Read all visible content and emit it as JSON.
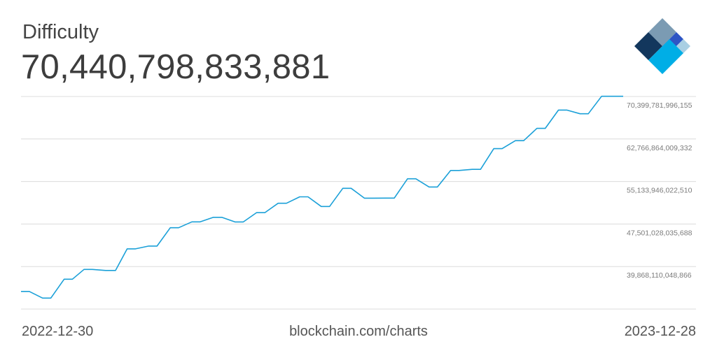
{
  "header": {
    "title": "Difficulty",
    "value": "70,440,798,833,881"
  },
  "footer": {
    "start_date": "2022-12-30",
    "source": "blockchain.com/charts",
    "end_date": "2023-12-28"
  },
  "logo": {
    "icon": "blockchain-logo-icon",
    "colors": [
      "#7b9bb3",
      "#13375d",
      "#2e55c4",
      "#a9cfe3",
      "#00aee6"
    ]
  },
  "chart_data": {
    "type": "line",
    "title": "",
    "xlabel": "",
    "ylabel": "",
    "xlim": [
      "2022-12-30",
      "2023-12-28"
    ],
    "ylim": [
      32235191876044,
      70399781996155
    ],
    "ytick_labels": [
      "70,399,781,996,155",
      "62,766,864,009,332",
      "55,133,946,022,510",
      "47,501,028,035,688",
      "39,868,110,048,866"
    ],
    "grid": true,
    "line_color": "#1ba0d8",
    "series": [
      {
        "x": [
          "2022-12-30",
          "2023-01-04",
          "2023-01-12",
          "2023-01-17",
          "2023-01-25",
          "2023-01-30",
          "2023-02-06",
          "2023-02-11",
          "2023-02-19",
          "2023-02-25",
          "2023-03-04",
          "2023-03-09",
          "2023-03-17",
          "2023-03-22",
          "2023-03-30",
          "2023-04-04",
          "2023-04-12",
          "2023-04-17",
          "2023-04-25",
          "2023-04-30",
          "2023-05-08",
          "2023-05-13",
          "2023-05-21",
          "2023-05-26",
          "2023-06-03",
          "2023-06-08",
          "2023-06-16",
          "2023-06-21",
          "2023-06-29",
          "2023-07-04",
          "2023-07-12",
          "2023-07-17",
          "2023-07-25",
          "2023-07-30",
          "2023-08-07",
          "2023-08-12",
          "2023-08-20",
          "2023-08-25",
          "2023-09-02",
          "2023-09-07",
          "2023-09-15",
          "2023-09-20",
          "2023-09-28",
          "2023-10-03",
          "2023-10-11",
          "2023-10-16",
          "2023-10-24",
          "2023-10-29",
          "2023-11-06",
          "2023-11-11",
          "2023-11-19",
          "2023-11-24",
          "2023-12-02",
          "2023-12-07",
          "2023-12-15",
          "2023-12-20",
          "2023-12-28"
        ],
        "y": [
          35400000000000,
          35400000000000,
          34200000000000,
          34200000000000,
          37590000000000,
          37590000000000,
          39350000000000,
          39350000000000,
          39160000000000,
          39160000000000,
          43050000000000,
          43050000000000,
          43550000000000,
          43550000000000,
          46840000000000,
          46840000000000,
          47890000000000,
          47890000000000,
          48710000000000,
          48710000000000,
          47880000000000,
          47880000000000,
          49550000000000,
          49550000000000,
          51230000000000,
          51230000000000,
          52390000000000,
          52390000000000,
          50650000000000,
          50650000000000,
          53910000000000,
          53910000000000,
          52140000000000,
          52140000000000,
          52160000000000,
          52160000000000,
          55620000000000,
          55620000000000,
          54150000000000,
          54150000000000,
          57120000000000,
          57120000000000,
          57320000000000,
          57320000000000,
          61030000000000,
          61030000000000,
          62460000000000,
          62460000000000,
          64680000000000,
          64680000000000,
          67960000000000,
          67960000000000,
          67300000000000,
          67300000000000,
          70440000000000,
          70440000000000,
          70440000000000
        ]
      }
    ]
  }
}
